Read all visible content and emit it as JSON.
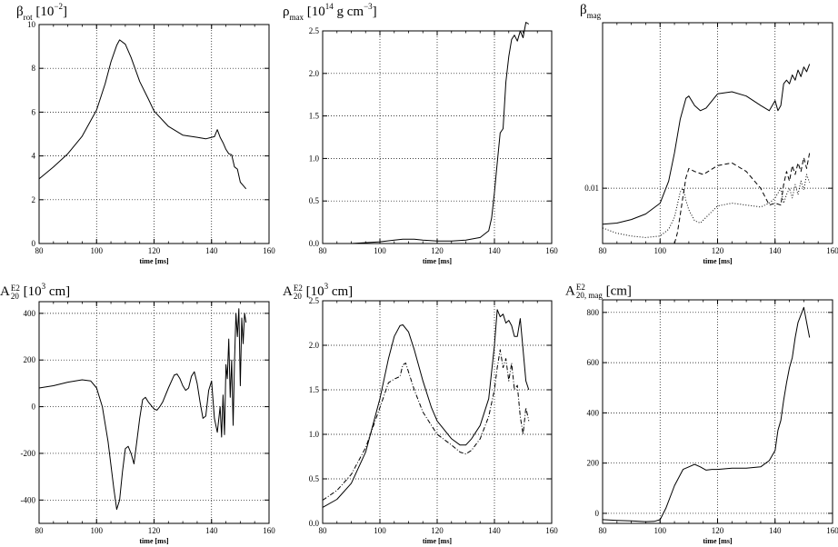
{
  "chart_data": [
    {
      "type": "line",
      "title": {
        "base": "β",
        "sub": "rot",
        "rest": " [10",
        "sup": "−2",
        "end": "]"
      },
      "xlabel": "time [ms]",
      "xlim": [
        80,
        160
      ],
      "xticks": [
        "80",
        "100",
        "120",
        "140",
        "160"
      ],
      "ylim": [
        0,
        10
      ],
      "yticks": [
        "0",
        "2",
        "4",
        "6",
        "8",
        "10"
      ],
      "grid_x": [
        100,
        120,
        140
      ],
      "grid_y": [
        2,
        4,
        6,
        8
      ],
      "series": [
        {
          "style": "solid",
          "x": [
            80,
            85,
            90,
            95,
            100,
            103,
            105,
            107,
            108,
            110,
            112,
            115,
            118,
            120,
            125,
            130,
            135,
            138,
            140,
            141,
            142,
            143,
            144,
            145,
            146,
            147,
            148,
            149,
            150,
            151,
            152
          ],
          "y": [
            2.95,
            3.5,
            4.1,
            4.9,
            6.1,
            7.3,
            8.3,
            9.05,
            9.3,
            9.1,
            8.5,
            7.4,
            6.6,
            6.05,
            5.35,
            4.95,
            4.85,
            4.78,
            4.85,
            4.88,
            5.2,
            4.85,
            4.6,
            4.3,
            4.1,
            4.05,
            3.5,
            3.4,
            2.8,
            2.65,
            2.5
          ]
        }
      ]
    },
    {
      "type": "line",
      "title": {
        "base": "ρ",
        "sub": "max",
        "rest": " [10",
        "sup": "14",
        "end": " g cm",
        "sup2": "−3",
        "end2": "]"
      },
      "xlabel": "time [ms]",
      "xlim": [
        80,
        160
      ],
      "xticks": [
        "80",
        "100",
        "120",
        "140",
        "160"
      ],
      "ylim": [
        0,
        2.5
      ],
      "yticks": [
        "0.0",
        "0.5",
        "1.0",
        "1.5",
        "2.0",
        "2.5"
      ],
      "grid_x": [
        100,
        120,
        140
      ],
      "grid_y": [
        0.5,
        1.0,
        1.5,
        2.0,
        2.5
      ],
      "series": [
        {
          "style": "solid",
          "x": [
            80,
            90,
            100,
            105,
            108,
            112,
            115,
            120,
            125,
            130,
            135,
            138,
            139,
            140,
            141,
            142,
            143,
            144,
            145,
            146,
            147,
            148,
            149,
            150,
            151,
            152
          ],
          "y": [
            0.0,
            0.0,
            0.02,
            0.04,
            0.05,
            0.05,
            0.04,
            0.03,
            0.03,
            0.04,
            0.07,
            0.15,
            0.3,
            0.6,
            0.95,
            1.3,
            1.35,
            1.9,
            2.2,
            2.4,
            2.45,
            2.38,
            2.5,
            2.42,
            2.6,
            2.58
          ]
        }
      ]
    },
    {
      "type": "line",
      "title": {
        "base": "β",
        "sub": "mag",
        "rest": "",
        "sup": "",
        "end": ""
      },
      "xlabel": "time [ms]",
      "xlim": [
        80,
        160
      ],
      "xticks": [
        "80",
        "100",
        "120",
        "140",
        "160"
      ],
      "yscale": "log",
      "ylim": [
        0.0048,
        0.09
      ],
      "yticks": [
        "0.01"
      ],
      "ytick_values": [
        0.01
      ],
      "grid_x": [
        100,
        120,
        140
      ],
      "grid_y": [
        0.01
      ],
      "series": [
        {
          "style": "solid",
          "x": [
            80,
            85,
            90,
            95,
            100,
            103,
            105,
            107,
            109,
            110,
            112,
            114,
            116,
            120,
            125,
            130,
            135,
            138,
            140,
            141,
            142,
            143,
            144,
            145,
            146,
            147,
            148,
            149,
            150,
            151,
            152
          ],
          "y": [
            0.0062,
            0.0063,
            0.0066,
            0.0071,
            0.0082,
            0.011,
            0.016,
            0.025,
            0.033,
            0.034,
            0.03,
            0.028,
            0.029,
            0.035,
            0.036,
            0.034,
            0.03,
            0.028,
            0.032,
            0.028,
            0.03,
            0.04,
            0.042,
            0.04,
            0.045,
            0.042,
            0.048,
            0.044,
            0.05,
            0.047,
            0.052
          ]
        },
        {
          "style": "dashed",
          "x": [
            105,
            106,
            107,
            108,
            109,
            110,
            112,
            115,
            120,
            125,
            130,
            135,
            138,
            140,
            142,
            143,
            144,
            145,
            146,
            147,
            148,
            149,
            150,
            151,
            152
          ],
          "y": [
            0.0048,
            0.0055,
            0.007,
            0.009,
            0.0115,
            0.013,
            0.0125,
            0.012,
            0.0135,
            0.014,
            0.0125,
            0.01,
            0.008,
            0.0082,
            0.008,
            0.0105,
            0.0125,
            0.011,
            0.0135,
            0.012,
            0.014,
            0.0125,
            0.015,
            0.013,
            0.016
          ]
        },
        {
          "style": "dotted",
          "x": [
            80,
            85,
            90,
            95,
            100,
            103,
            105,
            107,
            108,
            109,
            110,
            112,
            114,
            116,
            120,
            125,
            130,
            135,
            138,
            140,
            142,
            143,
            144,
            145,
            146,
            147,
            148,
            149,
            150,
            151,
            152
          ],
          "y": [
            0.0059,
            0.0055,
            0.0053,
            0.0052,
            0.0053,
            0.0058,
            0.0068,
            0.0095,
            0.01,
            0.0085,
            0.0075,
            0.0065,
            0.0063,
            0.0068,
            0.0079,
            0.0082,
            0.008,
            0.0078,
            0.0082,
            0.0088,
            0.01,
            0.0082,
            0.0092,
            0.01,
            0.0088,
            0.0105,
            0.0092,
            0.011,
            0.0098,
            0.012,
            0.0108
          ]
        }
      ]
    },
    {
      "type": "line",
      "title": {
        "base": "A",
        "sub": "20",
        "supsub": "E2",
        "rest": " [10",
        "sup": "3",
        "end": " cm]"
      },
      "xlabel": "time [ms]",
      "xlim": [
        80,
        160
      ],
      "xticks": [
        "80",
        "100",
        "120",
        "140",
        "160"
      ],
      "ylim": [
        -500,
        450
      ],
      "yticks": [
        "-400",
        "-200",
        "0",
        "200",
        "400"
      ],
      "ytick_values": [
        -400,
        -200,
        0,
        200,
        400
      ],
      "grid_x": [
        100,
        120,
        140
      ],
      "grid_y": [
        -400,
        -200,
        0,
        200,
        400
      ],
      "series": [
        {
          "style": "solid",
          "x": [
            80,
            85,
            90,
            95,
            98,
            100,
            102,
            104,
            106,
            107,
            108,
            109,
            110,
            111,
            112,
            113,
            114,
            115,
            116,
            117,
            118,
            120,
            121,
            122,
            123,
            125,
            127,
            128,
            129,
            130,
            131,
            132,
            133,
            134,
            135,
            136,
            137,
            138,
            139,
            140,
            141,
            142,
            143,
            143.5,
            144,
            144.5,
            145,
            145.5,
            146,
            146.5,
            147,
            147.5,
            148,
            148.5,
            149,
            149.5,
            150,
            150.5,
            151,
            151.5,
            152
          ],
          "y": [
            80,
            90,
            105,
            115,
            110,
            80,
            0,
            -150,
            -350,
            -440,
            -400,
            -280,
            -180,
            -170,
            -200,
            -245,
            -150,
            -50,
            30,
            40,
            20,
            -10,
            -15,
            0,
            20,
            80,
            135,
            140,
            120,
            90,
            70,
            80,
            130,
            150,
            100,
            20,
            -50,
            -40,
            70,
            110,
            -50,
            -110,
            0,
            -130,
            50,
            -120,
            180,
            120,
            290,
            40,
            200,
            -80,
            190,
            400,
            300,
            420,
            90,
            380,
            270,
            400,
            360
          ]
        }
      ]
    },
    {
      "type": "line",
      "title": {
        "base": "A",
        "sub": "20",
        "supsub": "E2",
        "rest": " [10",
        "sup": "3",
        "end": " cm]"
      },
      "xlabel": "time [ms]",
      "xlim": [
        80,
        160
      ],
      "xticks": [
        "80",
        "100",
        "120",
        "140",
        "160"
      ],
      "ylim": [
        0,
        2.5
      ],
      "yticks": [
        "0.0",
        "0.5",
        "1.0",
        "1.5",
        "2.0",
        "2.5"
      ],
      "grid_x": [
        100,
        120,
        140
      ],
      "grid_y": [
        0.5,
        1.0,
        1.5,
        2.0,
        2.5
      ],
      "series": [
        {
          "style": "solid",
          "x": [
            80,
            85,
            90,
            95,
            100,
            103,
            105,
            107,
            108,
            110,
            112,
            115,
            118,
            120,
            125,
            128,
            130,
            132,
            135,
            138,
            140,
            141,
            142,
            143,
            144,
            145,
            146,
            147,
            148,
            149,
            150,
            151,
            152
          ],
          "y": [
            0.18,
            0.27,
            0.45,
            0.8,
            1.4,
            1.85,
            2.1,
            2.22,
            2.23,
            2.15,
            1.95,
            1.6,
            1.3,
            1.15,
            0.95,
            0.88,
            0.88,
            0.95,
            1.1,
            1.4,
            2.0,
            2.4,
            2.32,
            2.35,
            2.25,
            2.28,
            2.22,
            2.1,
            2.1,
            2.3,
            1.95,
            1.6,
            1.5
          ]
        },
        {
          "style": "dashdot",
          "x": [
            80,
            85,
            90,
            95,
            100,
            103,
            105,
            107,
            108,
            109,
            110,
            112,
            115,
            118,
            120,
            125,
            128,
            130,
            132,
            135,
            138,
            140,
            141,
            142,
            143,
            144,
            145,
            146,
            147,
            148,
            149,
            150,
            151,
            152
          ],
          "y": [
            0.26,
            0.37,
            0.55,
            0.85,
            1.3,
            1.58,
            1.62,
            1.65,
            1.78,
            1.8,
            1.7,
            1.5,
            1.25,
            1.1,
            1.0,
            0.88,
            0.8,
            0.78,
            0.82,
            0.95,
            1.2,
            1.5,
            1.75,
            1.95,
            1.75,
            1.85,
            1.6,
            1.8,
            1.5,
            1.55,
            1.2,
            1.0,
            1.3,
            1.15
          ]
        }
      ]
    },
    {
      "type": "line",
      "title": {
        "base": "A",
        "sub": "20, mag",
        "supsub": "E2",
        "rest": " [cm]",
        "sup": "",
        "end": ""
      },
      "xlabel": "time [ms]",
      "xlim": [
        80,
        160
      ],
      "xticks": [
        "80",
        "100",
        "120",
        "140",
        "160"
      ],
      "ylim": [
        -40,
        850
      ],
      "yticks": [
        "0",
        "200",
        "400",
        "600",
        "800"
      ],
      "ytick_values": [
        0,
        200,
        400,
        600,
        800
      ],
      "grid_x": [
        100,
        120,
        140
      ],
      "grid_y": [
        0,
        200,
        400,
        600,
        800
      ],
      "series": [
        {
          "style": "solid",
          "x": [
            80,
            85,
            90,
            95,
            98,
            100,
            102,
            105,
            108,
            110,
            112,
            114,
            116,
            118,
            120,
            125,
            130,
            135,
            138,
            140,
            141,
            142,
            143,
            144,
            145,
            146,
            147,
            148,
            149,
            150,
            151,
            152
          ],
          "y": [
            -25,
            -28,
            -30,
            -33,
            -32,
            -25,
            20,
            110,
            175,
            185,
            195,
            185,
            172,
            175,
            175,
            180,
            180,
            185,
            210,
            250,
            330,
            370,
            450,
            520,
            580,
            620,
            700,
            760,
            790,
            820,
            760,
            700
          ]
        }
      ]
    }
  ]
}
